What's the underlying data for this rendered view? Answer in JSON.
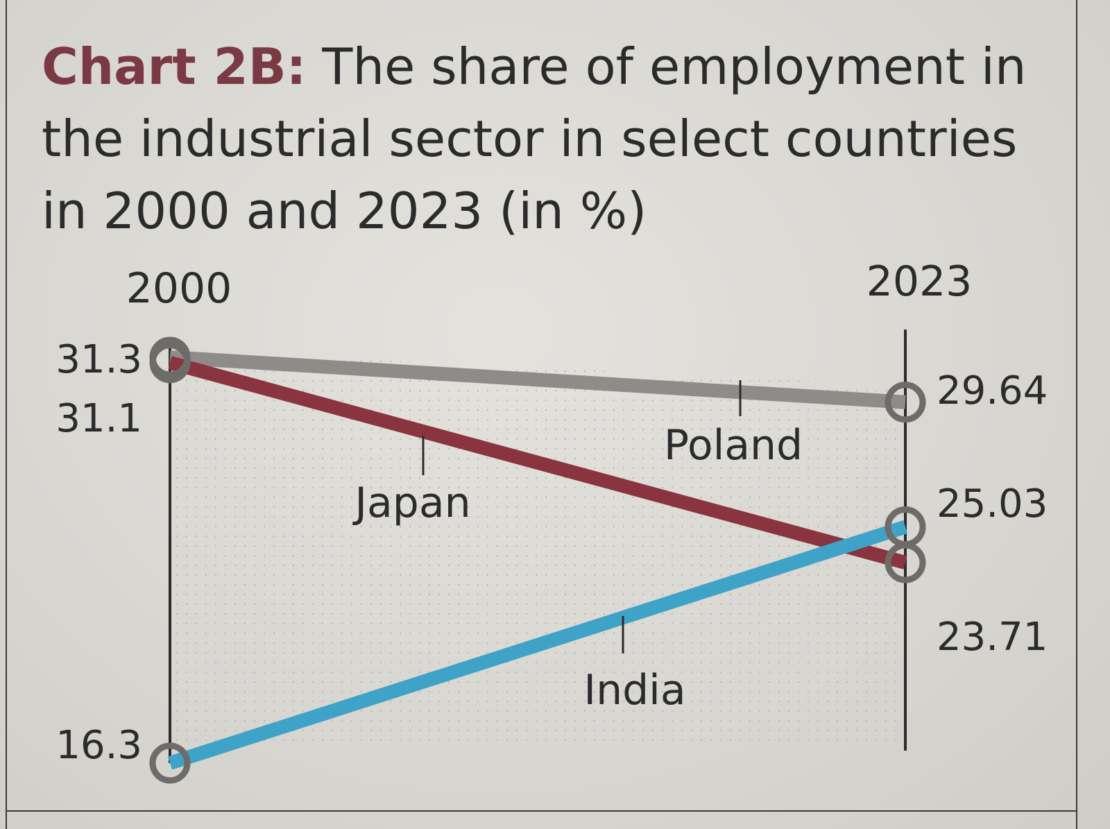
{
  "title": {
    "prefix": "Chart 2B:",
    "text": "The share of employment in the industrial sector in select countries in 2000 and 2023 (in %)"
  },
  "colors": {
    "japan": "#8a3440",
    "poland": "#8e8c88",
    "india": "#3fa3c8",
    "title_prefix": "#7a3a44"
  },
  "chart_data": {
    "type": "line",
    "chart_style": "slope",
    "x": [
      "2000",
      "2023"
    ],
    "series": [
      {
        "name": "Poland",
        "values": [
          31.3,
          29.64
        ],
        "value_labels": [
          "31.3",
          "29.64"
        ]
      },
      {
        "name": "Japan",
        "values": [
          31.1,
          23.71
        ],
        "value_labels": [
          "31.1",
          "23.71"
        ]
      },
      {
        "name": "India",
        "values": [
          16.3,
          25.03
        ],
        "value_labels": [
          "16.3",
          "25.03"
        ]
      }
    ]
  }
}
